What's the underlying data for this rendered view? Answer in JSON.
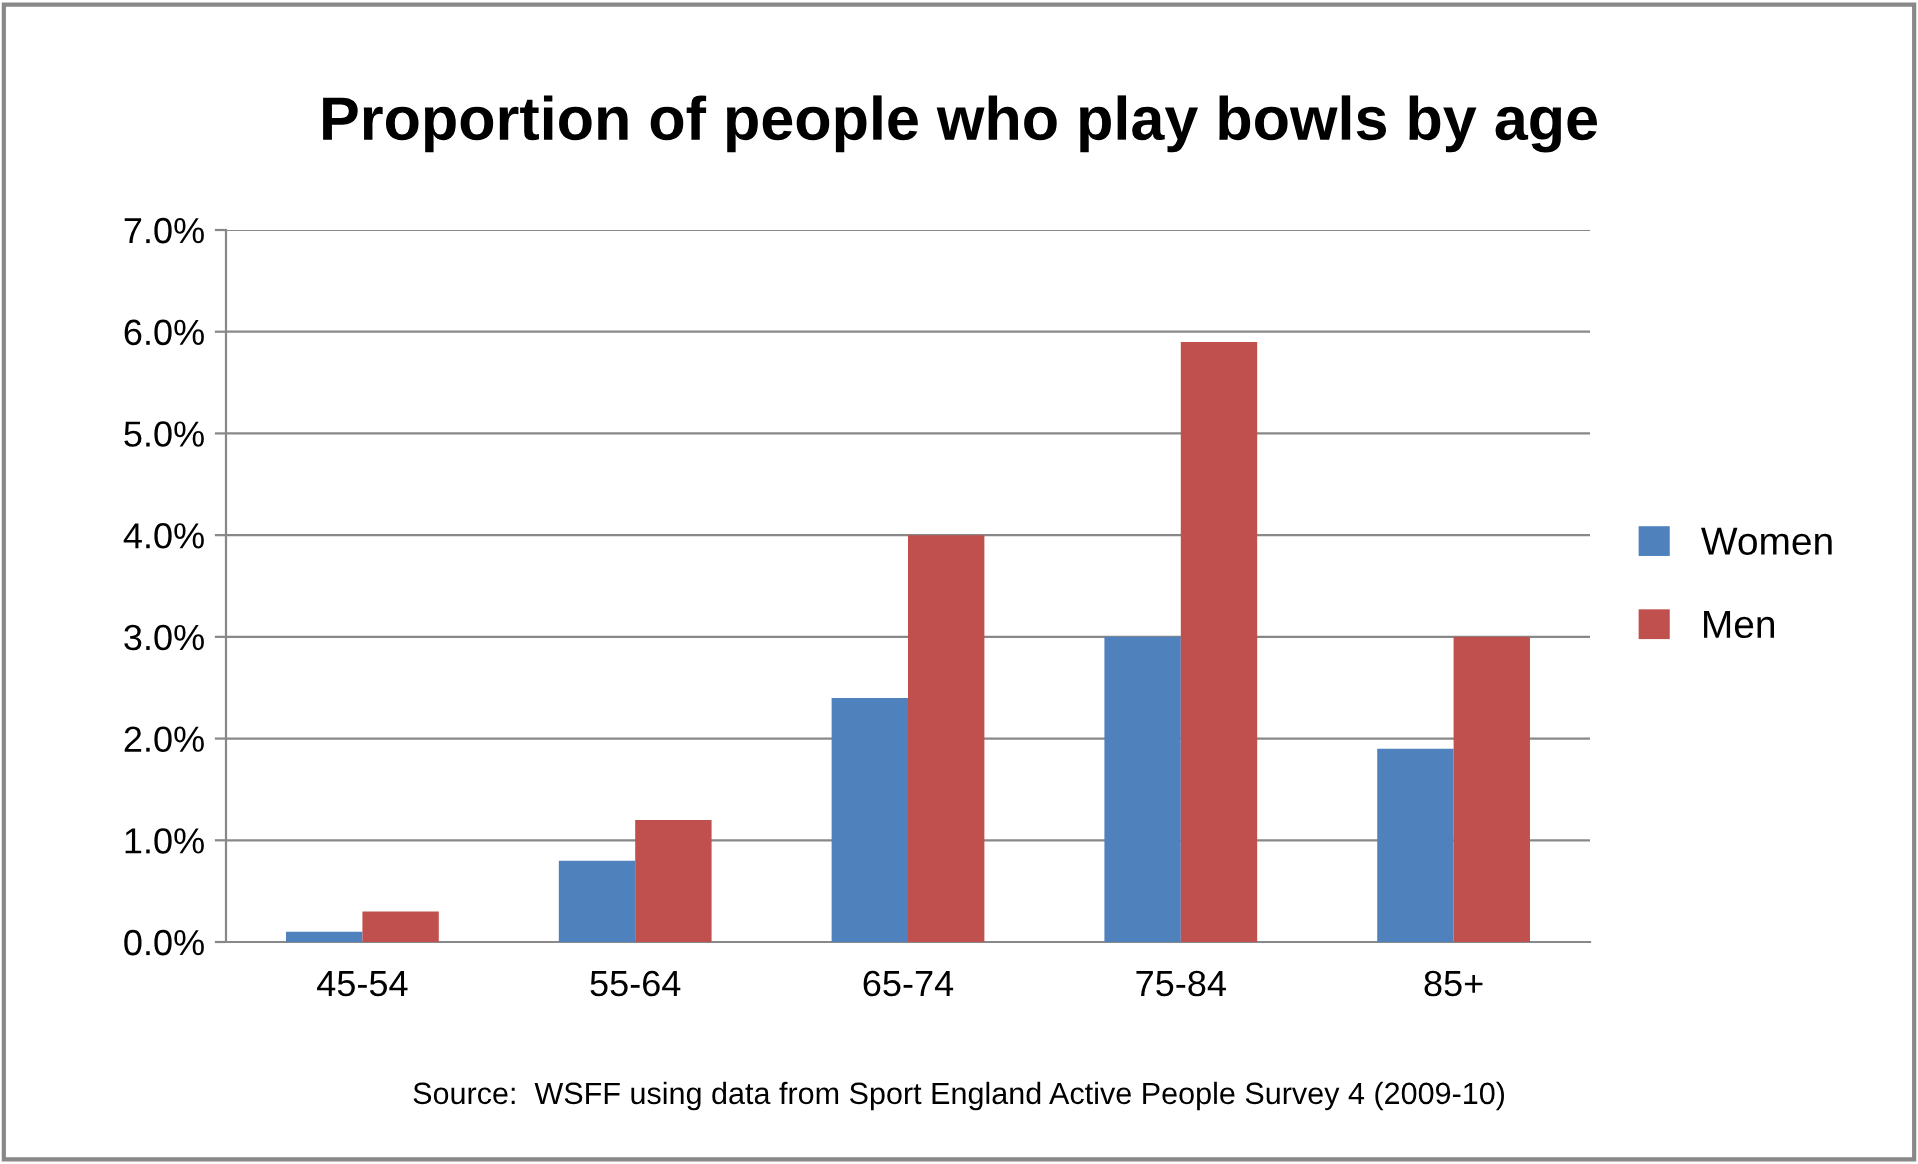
{
  "chart_data": {
    "type": "bar",
    "title": "Proportion of people who play bowls by age",
    "categories": [
      "45-54",
      "55-64",
      "65-74",
      "75-84",
      "85+"
    ],
    "series": [
      {
        "name": "Women",
        "color": "#4f81bd",
        "values": [
          0.1,
          0.8,
          2.4,
          3.0,
          1.9
        ]
      },
      {
        "name": "Men",
        "color": "#c0504d",
        "values": [
          0.3,
          1.2,
          4.0,
          5.9,
          3.0
        ]
      }
    ],
    "ylim": [
      0,
      7
    ],
    "yticks": [
      {
        "value": 0,
        "label": "0.0%"
      },
      {
        "value": 1,
        "label": "1.0%"
      },
      {
        "value": 2,
        "label": "2.0%"
      },
      {
        "value": 3,
        "label": "3.0%"
      },
      {
        "value": 4,
        "label": "4.0%"
      },
      {
        "value": 5,
        "label": "5.0%"
      },
      {
        "value": 6,
        "label": "6.0%"
      },
      {
        "value": 7,
        "label": "7.0%"
      }
    ],
    "grid": "y",
    "legend": "right",
    "annotations": [
      "Source:  WSFF using data from Sport England Active People Survey 4 (2009-10)"
    ]
  }
}
